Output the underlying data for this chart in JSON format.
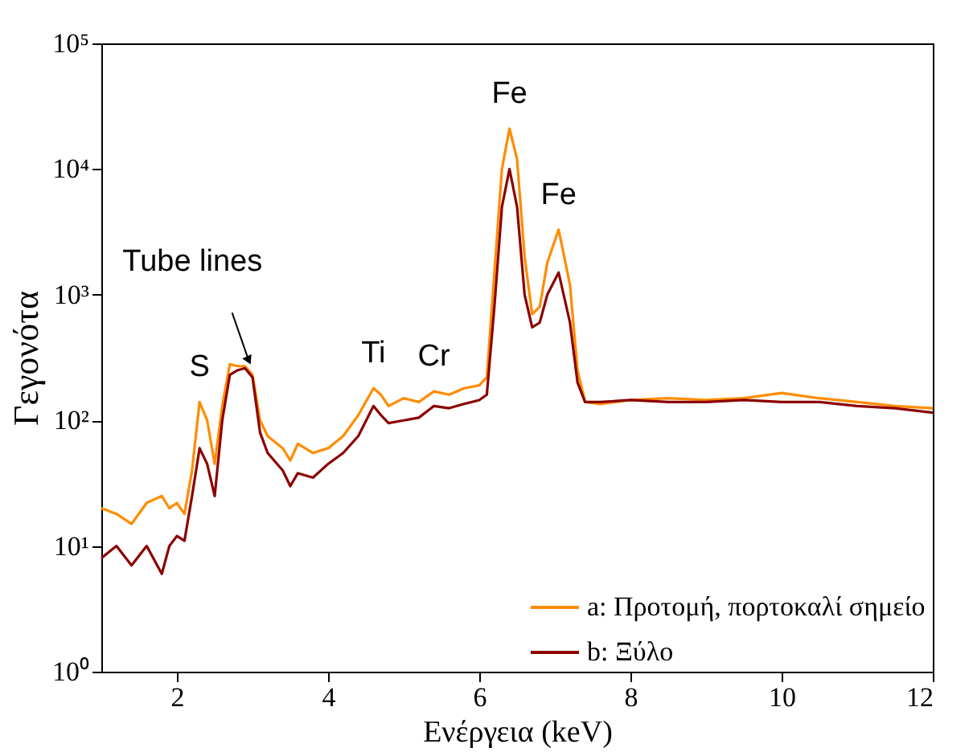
{
  "chart_data": {
    "type": "line",
    "xlabel": "Ενέργεια (keV)",
    "ylabel": "Γεγονότα",
    "x": [
      1.0,
      1.2,
      1.4,
      1.6,
      1.8,
      1.9,
      2.0,
      2.1,
      2.2,
      2.3,
      2.4,
      2.5,
      2.6,
      2.7,
      2.8,
      2.9,
      3.0,
      3.1,
      3.2,
      3.4,
      3.5,
      3.6,
      3.8,
      4.0,
      4.2,
      4.4,
      4.6,
      4.7,
      4.8,
      5.0,
      5.2,
      5.4,
      5.6,
      5.8,
      6.0,
      6.1,
      6.2,
      6.3,
      6.4,
      6.5,
      6.6,
      6.7,
      6.8,
      6.9,
      7.05,
      7.2,
      7.3,
      7.4,
      7.6,
      8.0,
      8.5,
      9.0,
      9.5,
      10.0,
      10.5,
      11.0,
      11.5,
      12.0
    ],
    "series": [
      {
        "name": "a: Προτομή, πορτοκαλί σημείο",
        "color": "#ff8c00",
        "values": [
          20,
          18,
          15,
          22,
          25,
          20,
          22,
          18,
          40,
          140,
          100,
          45,
          130,
          280,
          270,
          270,
          230,
          100,
          75,
          60,
          48,
          65,
          55,
          60,
          75,
          110,
          180,
          160,
          130,
          150,
          140,
          170,
          160,
          180,
          190,
          220,
          1500,
          10000,
          21000,
          12000,
          2000,
          700,
          800,
          1800,
          3300,
          1200,
          250,
          140,
          135,
          145,
          150,
          145,
          150,
          165,
          150,
          140,
          130,
          125
        ]
      },
      {
        "name": "b: Ξύλο",
        "color": "#8b0000",
        "values": [
          8,
          10,
          7,
          10,
          6,
          10,
          12,
          11,
          25,
          60,
          45,
          25,
          100,
          230,
          250,
          260,
          220,
          80,
          55,
          40,
          30,
          38,
          35,
          45,
          55,
          75,
          130,
          110,
          95,
          100,
          105,
          130,
          125,
          135,
          145,
          160,
          800,
          5000,
          10000,
          5000,
          1000,
          550,
          600,
          1000,
          1500,
          600,
          200,
          140,
          140,
          145,
          140,
          140,
          145,
          140,
          140,
          130,
          125,
          115
        ]
      }
    ],
    "xlim": [
      1,
      12
    ],
    "xticks": [
      2,
      4,
      6,
      8,
      10,
      12
    ],
    "ylim": [
      1,
      100000
    ],
    "log": true,
    "yticks": [
      {
        "value": 1,
        "label": "10⁰"
      },
      {
        "value": 10,
        "label": "10¹"
      },
      {
        "value": 100,
        "label": "10²"
      },
      {
        "value": 1000,
        "label": "10³"
      },
      {
        "value": 10000,
        "label": "10⁴"
      },
      {
        "value": 100000,
        "label": "10⁵"
      }
    ],
    "annotations": [
      {
        "text": "S",
        "x": 2.3,
        "y": 140
      },
      {
        "text": "Tube lines",
        "x": 2.95,
        "y": 300
      },
      {
        "text": "Ti",
        "x": 4.6,
        "y": 180
      },
      {
        "text": "Cr",
        "x": 5.4,
        "y": 170
      },
      {
        "text": "Fe",
        "x": 6.4,
        "y": 21000
      },
      {
        "text": "Fe",
        "x": 7.05,
        "y": 3300
      }
    ],
    "legend": "bottom right",
    "grid": false,
    "line_style": "solid",
    "marker": "none"
  }
}
